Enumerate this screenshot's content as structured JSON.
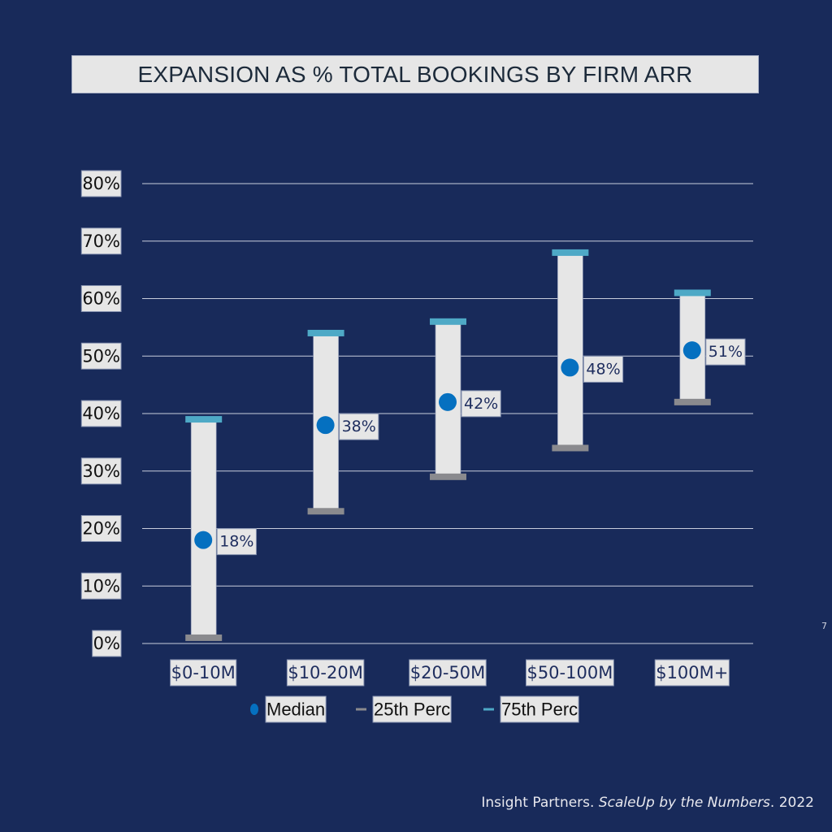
{
  "title": "EXPANSION AS % TOTAL BOOKINGS BY FIRM ARR",
  "page_number": "7",
  "source": {
    "prefix": "Insight Partners. ",
    "italic": "ScaleUp by the Numbers",
    "suffix": ". 2022"
  },
  "colors": {
    "background": "#182a5a",
    "bar_fill": "#e6e6e6",
    "median": "#0570c0",
    "p25": "#8a8a8e",
    "p75": "#4ea9c6",
    "gridline": "#c8cddc"
  },
  "chart_data": {
    "type": "range-bar",
    "title": "EXPANSION AS % TOTAL BOOKINGS BY FIRM ARR",
    "xlabel": "",
    "ylabel": "",
    "ylim": [
      0,
      80
    ],
    "y_ticks": [
      0,
      10,
      20,
      30,
      40,
      50,
      60,
      70,
      80
    ],
    "y_tick_labels": [
      "0%",
      "10%",
      "20%",
      "30%",
      "40%",
      "50%",
      "60%",
      "70%",
      "80%"
    ],
    "grid": true,
    "categories": [
      "$0-10M",
      "$10-20M",
      "$20-50M",
      "$50-100M",
      "$100M+"
    ],
    "series": [
      {
        "name": "Median",
        "values": [
          18,
          38,
          42,
          48,
          51
        ]
      },
      {
        "name": "25th Perc",
        "values": [
          1,
          23,
          29,
          34,
          42
        ]
      },
      {
        "name": "75th Perc",
        "values": [
          39,
          54,
          56,
          68,
          61
        ]
      }
    ],
    "data_labels": [
      "18%",
      "38%",
      "42%",
      "48%",
      "51%"
    ],
    "legend": {
      "position": "bottom",
      "entries": [
        {
          "label": "Median",
          "marker": "dot"
        },
        {
          "label": "25th Perc",
          "marker": "dash"
        },
        {
          "label": "75th Perc",
          "marker": "dash"
        }
      ]
    }
  }
}
